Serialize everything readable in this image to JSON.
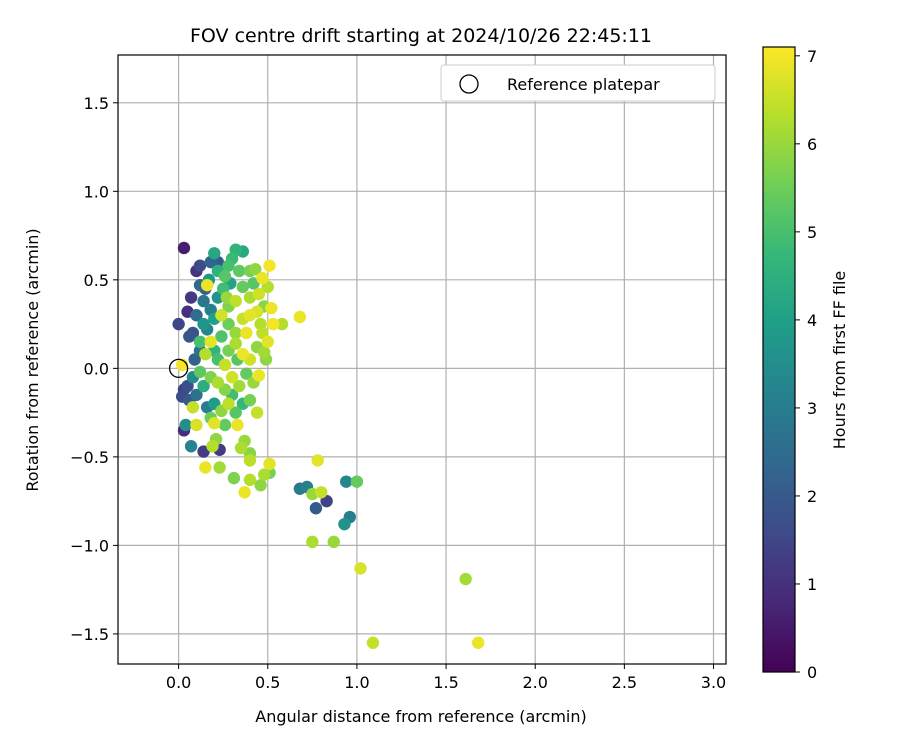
{
  "chart_data": {
    "type": "scatter",
    "title": "FOV centre drift starting at 2024/10/26 22:45:11",
    "xlabel": "Angular distance from reference (arcmin)",
    "ylabel": "Rotation from reference (arcmin)",
    "xlim": [
      -0.34,
      3.07
    ],
    "ylim": [
      -1.67,
      1.77
    ],
    "xticks": [
      "0.0",
      "0.5",
      "1.0",
      "1.5",
      "2.0",
      "2.5",
      "3.0"
    ],
    "xtick_values": [
      0.0,
      0.5,
      1.0,
      1.5,
      2.0,
      2.5,
      3.0
    ],
    "yticks": [
      "−1.5",
      "−1.0",
      "−0.5",
      "0.0",
      "0.5",
      "1.0",
      "1.5"
    ],
    "ytick_values": [
      -1.5,
      -1.0,
      -0.5,
      0.0,
      0.5,
      1.0,
      1.5
    ],
    "grid": true,
    "legend": {
      "position": "top-right",
      "entries": [
        "Reference platepar"
      ]
    },
    "colorbar": {
      "label": "Hours from first FF file",
      "colormap": "viridis",
      "range": [
        0,
        7.1
      ],
      "tick_values": [
        0,
        1,
        2,
        3,
        4,
        5,
        6,
        7
      ],
      "ticks": [
        "0",
        "1",
        "2",
        "3",
        "4",
        "5",
        "6",
        "7"
      ],
      "stops": [
        "#440154",
        "#482878",
        "#3e4a89",
        "#31688e",
        "#26828e",
        "#1f9e89",
        "#35b779",
        "#6ece58",
        "#b5de2b",
        "#fde725"
      ]
    },
    "reference_point": {
      "x": 0.0,
      "y": 0.0
    },
    "points": [
      {
        "x": 0.03,
        "y": 0.68,
        "c": 0.6
      },
      {
        "x": 0.0,
        "y": 0.25,
        "c": 1.5
      },
      {
        "x": 0.05,
        "y": 0.32,
        "c": 1.0
      },
      {
        "x": 0.07,
        "y": 0.4,
        "c": 1.2
      },
      {
        "x": 0.08,
        "y": 0.2,
        "c": 1.8
      },
      {
        "x": 0.1,
        "y": 0.55,
        "c": 1.1
      },
      {
        "x": 0.12,
        "y": 0.58,
        "c": 1.6
      },
      {
        "x": 0.15,
        "y": 0.45,
        "c": 2.1
      },
      {
        "x": 0.18,
        "y": 0.6,
        "c": 2.3
      },
      {
        "x": 0.2,
        "y": 0.65,
        "c": 4.2
      },
      {
        "x": 0.17,
        "y": 0.5,
        "c": 3.8
      },
      {
        "x": 0.22,
        "y": 0.55,
        "c": 4.5
      },
      {
        "x": 0.26,
        "y": 0.52,
        "c": 5.2
      },
      {
        "x": 0.3,
        "y": 0.62,
        "c": 4.8
      },
      {
        "x": 0.32,
        "y": 0.67,
        "c": 4.6
      },
      {
        "x": 0.36,
        "y": 0.66,
        "c": 4.3
      },
      {
        "x": 0.4,
        "y": 0.55,
        "c": 5.6
      },
      {
        "x": 0.43,
        "y": 0.56,
        "c": 5.9
      },
      {
        "x": 0.47,
        "y": 0.51,
        "c": 6.9
      },
      {
        "x": 0.51,
        "y": 0.58,
        "c": 7.0
      },
      {
        "x": 0.5,
        "y": 0.46,
        "c": 6.3
      },
      {
        "x": 0.45,
        "y": 0.42,
        "c": 6.6
      },
      {
        "x": 0.4,
        "y": 0.4,
        "c": 6.2
      },
      {
        "x": 0.36,
        "y": 0.46,
        "c": 5.4
      },
      {
        "x": 0.32,
        "y": 0.38,
        "c": 6.4
      },
      {
        "x": 0.28,
        "y": 0.35,
        "c": 5.7
      },
      {
        "x": 0.25,
        "y": 0.45,
        "c": 4.9
      },
      {
        "x": 0.22,
        "y": 0.4,
        "c": 3.6
      },
      {
        "x": 0.18,
        "y": 0.33,
        "c": 3.1
      },
      {
        "x": 0.14,
        "y": 0.38,
        "c": 2.8
      },
      {
        "x": 0.1,
        "y": 0.3,
        "c": 2.5
      },
      {
        "x": 0.06,
        "y": 0.18,
        "c": 1.9
      },
      {
        "x": 0.09,
        "y": 0.05,
        "c": 2.2
      },
      {
        "x": 0.12,
        "y": 0.1,
        "c": 2.7
      },
      {
        "x": 0.16,
        "y": 0.22,
        "c": 3.3
      },
      {
        "x": 0.2,
        "y": 0.28,
        "c": 4.0
      },
      {
        "x": 0.24,
        "y": 0.18,
        "c": 5.1
      },
      {
        "x": 0.28,
        "y": 0.25,
        "c": 5.5
      },
      {
        "x": 0.32,
        "y": 0.2,
        "c": 6.0
      },
      {
        "x": 0.36,
        "y": 0.28,
        "c": 6.5
      },
      {
        "x": 0.4,
        "y": 0.3,
        "c": 6.8
      },
      {
        "x": 0.44,
        "y": 0.32,
        "c": 6.7
      },
      {
        "x": 0.48,
        "y": 0.35,
        "c": 5.8
      },
      {
        "x": 0.52,
        "y": 0.34,
        "c": 6.9
      },
      {
        "x": 0.53,
        "y": 0.25,
        "c": 7.0
      },
      {
        "x": 0.58,
        "y": 0.25,
        "c": 6.3
      },
      {
        "x": 0.68,
        "y": 0.29,
        "c": 6.9
      },
      {
        "x": 0.47,
        "y": 0.2,
        "c": 6.4
      },
      {
        "x": 0.44,
        "y": 0.12,
        "c": 5.9
      },
      {
        "x": 0.48,
        "y": 0.09,
        "c": 6.1
      },
      {
        "x": 0.4,
        "y": 0.05,
        "c": 6.6
      },
      {
        "x": 0.36,
        "y": 0.08,
        "c": 6.9
      },
      {
        "x": 0.32,
        "y": 0.14,
        "c": 6.2
      },
      {
        "x": 0.28,
        "y": 0.1,
        "c": 5.6
      },
      {
        "x": 0.26,
        "y": 0.02,
        "c": 6.5
      },
      {
        "x": 0.22,
        "y": 0.05,
        "c": 5.0
      },
      {
        "x": 0.18,
        "y": 0.15,
        "c": 6.8
      },
      {
        "x": 0.15,
        "y": 0.08,
        "c": 6.3
      },
      {
        "x": 0.12,
        "y": -0.02,
        "c": 5.3
      },
      {
        "x": 0.08,
        "y": -0.05,
        "c": 3.4
      },
      {
        "x": 0.05,
        "y": -0.1,
        "c": 1.7
      },
      {
        "x": 0.03,
        "y": -0.12,
        "c": 1.4
      },
      {
        "x": 0.06,
        "y": -0.18,
        "c": 2.0
      },
      {
        "x": 0.02,
        "y": -0.16,
        "c": 1.6
      },
      {
        "x": 0.02,
        "y": 0.02,
        "c": 7.0
      },
      {
        "x": 0.1,
        "y": -0.15,
        "c": 2.6
      },
      {
        "x": 0.14,
        "y": -0.1,
        "c": 4.4
      },
      {
        "x": 0.18,
        "y": -0.05,
        "c": 5.7
      },
      {
        "x": 0.22,
        "y": -0.08,
        "c": 6.2
      },
      {
        "x": 0.26,
        "y": -0.12,
        "c": 5.8
      },
      {
        "x": 0.3,
        "y": -0.05,
        "c": 6.6
      },
      {
        "x": 0.34,
        "y": -0.1,
        "c": 6.1
      },
      {
        "x": 0.38,
        "y": -0.03,
        "c": 5.4
      },
      {
        "x": 0.42,
        "y": -0.08,
        "c": 6.0
      },
      {
        "x": 0.45,
        "y": -0.04,
        "c": 6.9
      },
      {
        "x": 0.4,
        "y": -0.18,
        "c": 5.6
      },
      {
        "x": 0.36,
        "y": -0.2,
        "c": 4.7
      },
      {
        "x": 0.32,
        "y": -0.25,
        "c": 5.2
      },
      {
        "x": 0.28,
        "y": -0.2,
        "c": 6.4
      },
      {
        "x": 0.24,
        "y": -0.24,
        "c": 5.9
      },
      {
        "x": 0.2,
        "y": -0.2,
        "c": 3.9
      },
      {
        "x": 0.16,
        "y": -0.22,
        "c": 3.0
      },
      {
        "x": 0.08,
        "y": -0.22,
        "c": 6.5
      },
      {
        "x": 0.1,
        "y": -0.32,
        "c": 6.7
      },
      {
        "x": 0.04,
        "y": -0.32,
        "c": 3.5
      },
      {
        "x": 0.03,
        "y": -0.35,
        "c": 0.9
      },
      {
        "x": 0.07,
        "y": -0.44,
        "c": 3.2
      },
      {
        "x": 0.14,
        "y": -0.47,
        "c": 1.3
      },
      {
        "x": 0.18,
        "y": -0.28,
        "c": 5.5
      },
      {
        "x": 0.2,
        "y": -0.31,
        "c": 6.8
      },
      {
        "x": 0.19,
        "y": -0.44,
        "c": 6.3
      },
      {
        "x": 0.21,
        "y": -0.4,
        "c": 5.9
      },
      {
        "x": 0.23,
        "y": -0.46,
        "c": 1.2
      },
      {
        "x": 0.15,
        "y": -0.56,
        "c": 6.9
      },
      {
        "x": 0.23,
        "y": -0.56,
        "c": 6.1
      },
      {
        "x": 0.31,
        "y": -0.62,
        "c": 5.7
      },
      {
        "x": 0.33,
        "y": -0.32,
        "c": 6.9
      },
      {
        "x": 0.35,
        "y": -0.45,
        "c": 6.2
      },
      {
        "x": 0.37,
        "y": -0.41,
        "c": 6.0
      },
      {
        "x": 0.4,
        "y": -0.52,
        "c": 6.4
      },
      {
        "x": 0.4,
        "y": -0.48,
        "c": 5.8
      },
      {
        "x": 0.37,
        "y": -0.7,
        "c": 6.9
      },
      {
        "x": 0.4,
        "y": -0.63,
        "c": 6.3
      },
      {
        "x": 0.46,
        "y": -0.66,
        "c": 5.9
      },
      {
        "x": 0.48,
        "y": -0.6,
        "c": 6.2
      },
      {
        "x": 0.51,
        "y": -0.59,
        "c": 5.6
      },
      {
        "x": 0.51,
        "y": -0.54,
        "c": 6.8
      },
      {
        "x": 0.68,
        "y": -0.68,
        "c": 2.9
      },
      {
        "x": 0.72,
        "y": -0.67,
        "c": 3.1
      },
      {
        "x": 0.75,
        "y": -0.71,
        "c": 6.0
      },
      {
        "x": 0.8,
        "y": -0.7,
        "c": 6.5
      },
      {
        "x": 0.83,
        "y": -0.75,
        "c": 1.4
      },
      {
        "x": 0.77,
        "y": -0.79,
        "c": 2.0
      },
      {
        "x": 0.78,
        "y": -0.52,
        "c": 6.8
      },
      {
        "x": 0.94,
        "y": -0.64,
        "c": 3.3
      },
      {
        "x": 1.0,
        "y": -0.64,
        "c": 5.4
      },
      {
        "x": 0.96,
        "y": -0.84,
        "c": 3.0
      },
      {
        "x": 0.93,
        "y": -0.88,
        "c": 3.6
      },
      {
        "x": 0.75,
        "y": -0.98,
        "c": 6.2
      },
      {
        "x": 0.87,
        "y": -0.98,
        "c": 6.0
      },
      {
        "x": 1.02,
        "y": -1.13,
        "c": 6.7
      },
      {
        "x": 1.61,
        "y": -1.19,
        "c": 6.1
      },
      {
        "x": 1.09,
        "y": -1.55,
        "c": 6.5
      },
      {
        "x": 1.68,
        "y": -1.55,
        "c": 6.9
      },
      {
        "x": 0.12,
        "y": 0.47,
        "c": 2.4
      },
      {
        "x": 0.29,
        "y": 0.48,
        "c": 4.1
      },
      {
        "x": 0.34,
        "y": 0.55,
        "c": 5.3
      },
      {
        "x": 0.24,
        "y": 0.3,
        "c": 6.6
      },
      {
        "x": 0.16,
        "y": 0.47,
        "c": 6.9
      },
      {
        "x": 0.38,
        "y": 0.2,
        "c": 6.9
      },
      {
        "x": 0.14,
        "y": 0.25,
        "c": 3.7
      },
      {
        "x": 0.3,
        "y": -0.15,
        "c": 4.9
      },
      {
        "x": 0.44,
        "y": -0.25,
        "c": 6.5
      },
      {
        "x": 0.12,
        "y": 0.15,
        "c": 5.0
      },
      {
        "x": 0.27,
        "y": 0.4,
        "c": 6.0
      },
      {
        "x": 0.33,
        "y": 0.05,
        "c": 5.2
      },
      {
        "x": 0.2,
        "y": 0.1,
        "c": 4.6
      },
      {
        "x": 0.26,
        "y": -0.32,
        "c": 5.4
      },
      {
        "x": 0.22,
        "y": 0.6,
        "c": 2.0
      },
      {
        "x": 0.28,
        "y": 0.58,
        "c": 5.0
      },
      {
        "x": 0.42,
        "y": 0.48,
        "c": 5.2
      },
      {
        "x": 0.46,
        "y": 0.25,
        "c": 6.3
      },
      {
        "x": 0.5,
        "y": 0.15,
        "c": 6.8
      },
      {
        "x": 0.49,
        "y": 0.05,
        "c": 5.9
      }
    ]
  }
}
